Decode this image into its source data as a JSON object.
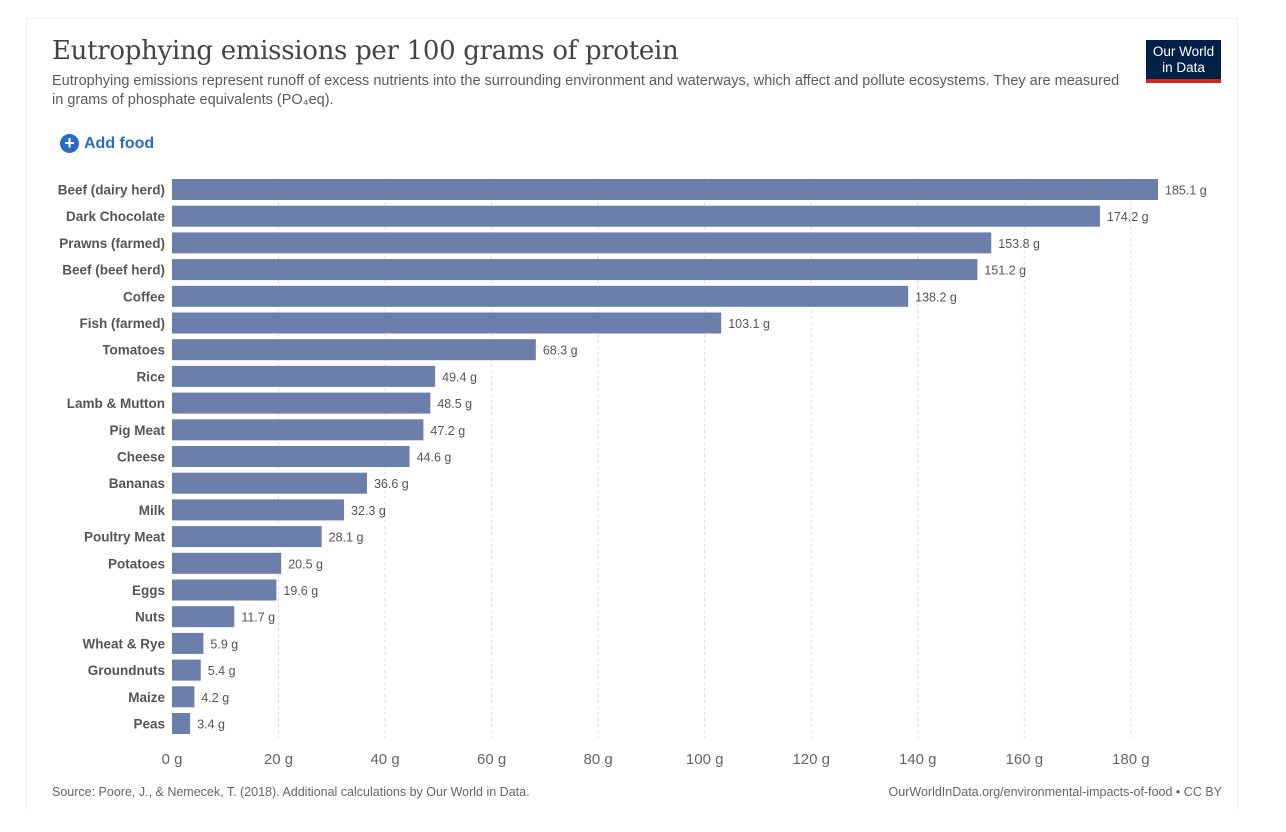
{
  "header": {
    "title": "Eutrophying emissions per 100 grams of protein",
    "subtitle": "Eutrophying emissions represent runoff of excess nutrients into the surrounding environment and waterways, which affect and pollute ecosystems. They are measured in grams of phosphate equivalents (PO₄eq).",
    "logo_line1": "Our World",
    "logo_line2": "in Data"
  },
  "controls": {
    "add_food_label": "Add food",
    "add_food_icon": "plus-circle-icon"
  },
  "footer": {
    "source": "Source: Poore, J., & Nemecek, T. (2018). Additional calculations by Our World in Data.",
    "link": "OurWorldInData.org/environmental-impacts-of-food • CC BY"
  },
  "colors": {
    "bar": "#6b7faa",
    "accent": "#2b6bc1",
    "logo_bg": "#002147",
    "logo_underline": "#ce261e"
  },
  "chart_data": {
    "type": "bar",
    "orientation": "horizontal",
    "categories": [
      "Beef (dairy herd)",
      "Dark Chocolate",
      "Prawns (farmed)",
      "Beef (beef herd)",
      "Coffee",
      "Fish (farmed)",
      "Tomatoes",
      "Rice",
      "Lamb & Mutton",
      "Pig Meat",
      "Cheese",
      "Bananas",
      "Milk",
      "Poultry Meat",
      "Potatoes",
      "Eggs",
      "Nuts",
      "Wheat & Rye",
      "Groundnuts",
      "Maize",
      "Peas"
    ],
    "values": [
      185.1,
      174.2,
      153.8,
      151.2,
      138.2,
      103.1,
      68.3,
      49.4,
      48.5,
      47.2,
      44.6,
      36.6,
      32.3,
      28.1,
      20.5,
      19.6,
      11.7,
      5.9,
      5.4,
      4.2,
      3.4
    ],
    "value_labels": [
      "185.1 g",
      "174.2 g",
      "153.8 g",
      "151.2 g",
      "138.2 g",
      "103.1 g",
      "68.3 g",
      "49.4 g",
      "48.5 g",
      "47.2 g",
      "44.6 g",
      "36.6 g",
      "32.3 g",
      "28.1 g",
      "20.5 g",
      "19.6 g",
      "11.7 g",
      "5.9 g",
      "5.4 g",
      "4.2 g",
      "3.4 g"
    ],
    "ticks": [
      0,
      20,
      40,
      60,
      80,
      100,
      120,
      140,
      160,
      180
    ],
    "tick_labels": [
      "0 g",
      "20 g",
      "40 g",
      "60 g",
      "80 g",
      "100 g",
      "120 g",
      "140 g",
      "160 g",
      "180 g"
    ],
    "xlim": [
      0,
      185.1
    ],
    "grid": true
  }
}
